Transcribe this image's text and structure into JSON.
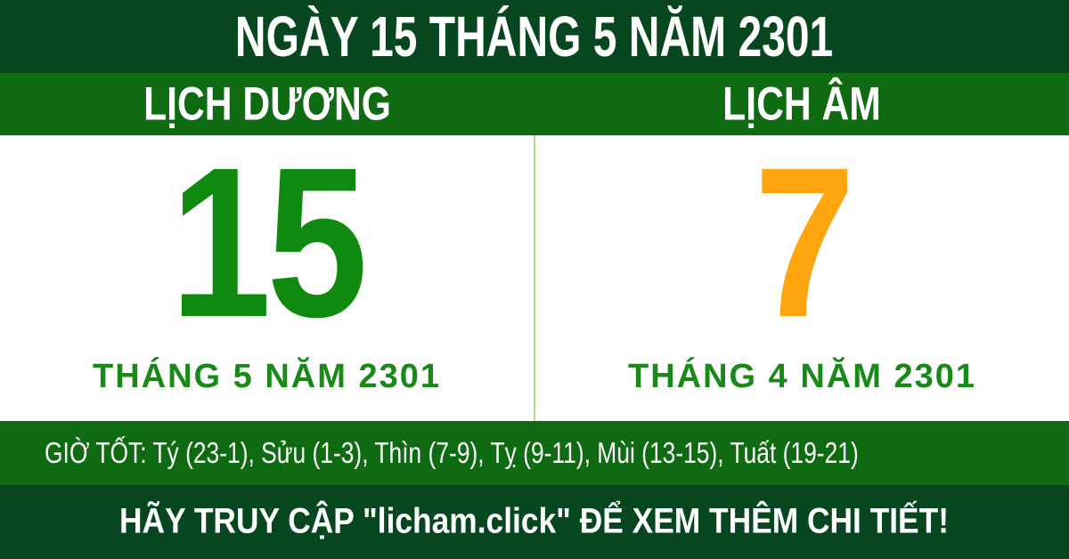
{
  "colors": {
    "dark_green": "#06471f",
    "bar_green": "#0e6b12",
    "day_green": "#0f8a0f",
    "month_green": "#178a17",
    "day_orange": "#ffa50f",
    "divider_light_green": "#b5d883",
    "white": "#ffffff"
  },
  "header": {
    "title": "NGÀY 15 THÁNG 5 NĂM 2301"
  },
  "columns": {
    "solar": {
      "label": "LỊCH DƯƠNG",
      "day": "15",
      "month_year": "THÁNG 5 NĂM 2301"
    },
    "lunar": {
      "label": "LỊCH ÂM",
      "day": "7",
      "month_year": "THÁNG 4 NĂM 2301"
    }
  },
  "good_hours": {
    "text": "GIỜ TỐT: Tý (23-1), Sửu (1-3), Thìn (7-9), Tỵ (9-11), Mùi (13-15), Tuất (19-21)"
  },
  "footer": {
    "text": "HÃY TRUY CẬP \"licham.click\" ĐỂ XEM THÊM CHI TIẾT!"
  }
}
